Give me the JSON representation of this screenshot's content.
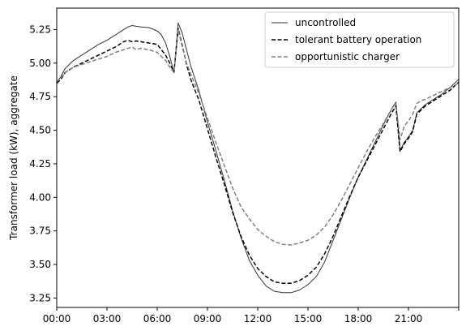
{
  "chart_data": {
    "type": "line",
    "title": "",
    "xlabel": "",
    "ylabel": "Transformer load (kW), aggregate",
    "xlim": [
      0,
      24
    ],
    "ylim": [
      3.18,
      5.41
    ],
    "x_ticks": [
      0,
      3,
      6,
      9,
      12,
      15,
      18,
      21,
      24
    ],
    "x_tick_labels": [
      "00:00",
      "03:00",
      "06:00",
      "09:00",
      "12:00",
      "15:00",
      "18:00",
      "21:00",
      ""
    ],
    "y_ticks": [
      3.25,
      3.5,
      3.75,
      4.0,
      4.25,
      4.5,
      4.75,
      5.0,
      5.25
    ],
    "y_tick_labels": [
      "3.25",
      "3.50",
      "3.75",
      "4.00",
      "4.25",
      "4.50",
      "4.75",
      "5.00",
      "5.25"
    ],
    "grid": false,
    "legend_position": "top-right",
    "series": [
      {
        "name": "uncontrolled",
        "color": "#333333",
        "dash": "solid",
        "x": [
          0,
          0.25,
          0.5,
          0.75,
          1,
          1.5,
          2,
          2.5,
          3,
          3.5,
          4,
          4.25,
          4.5,
          4.75,
          5,
          5.5,
          6,
          6.25,
          6.5,
          6.75,
          7,
          7.25,
          7.5,
          7.75,
          8,
          8.5,
          9,
          9.5,
          10,
          10.5,
          11,
          11.5,
          12,
          12.5,
          13,
          13.5,
          14,
          14.5,
          15,
          15.5,
          16,
          16.5,
          17,
          17.5,
          18,
          18.5,
          19,
          19.5,
          20,
          20.25,
          20.5,
          20.75,
          21,
          21.25,
          21.5,
          21.75,
          22,
          22.5,
          23,
          23.5,
          24
        ],
        "y": [
          4.86,
          4.9,
          4.96,
          4.99,
          5.02,
          5.06,
          5.1,
          5.14,
          5.17,
          5.21,
          5.25,
          5.27,
          5.28,
          5.275,
          5.27,
          5.265,
          5.24,
          5.21,
          5.15,
          5.05,
          4.93,
          5.3,
          5.22,
          5.1,
          4.98,
          4.79,
          4.56,
          4.35,
          4.13,
          3.9,
          3.7,
          3.53,
          3.42,
          3.34,
          3.3,
          3.29,
          3.29,
          3.31,
          3.35,
          3.41,
          3.52,
          3.68,
          3.84,
          4.0,
          4.15,
          4.28,
          4.41,
          4.54,
          4.66,
          4.71,
          4.35,
          4.41,
          4.45,
          4.5,
          4.63,
          4.66,
          4.69,
          4.73,
          4.77,
          4.82,
          4.88
        ]
      },
      {
        "name": "tolerant battery operation",
        "color": "#000000",
        "dash": "dashed",
        "x": [
          0,
          0.25,
          0.5,
          0.75,
          1,
          1.5,
          2,
          2.5,
          3,
          3.5,
          4,
          4.25,
          4.5,
          4.75,
          5,
          5.5,
          6,
          6.25,
          6.5,
          6.75,
          7,
          7.25,
          7.5,
          7.75,
          8,
          8.5,
          9,
          9.5,
          10,
          10.5,
          11,
          11.5,
          12,
          12.5,
          13,
          13.5,
          14,
          14.5,
          15,
          15.5,
          16,
          16.5,
          17,
          17.5,
          18,
          18.5,
          19,
          19.5,
          20,
          20.25,
          20.5,
          20.75,
          21,
          21.25,
          21.5,
          21.75,
          22,
          22.5,
          23,
          23.5,
          24
        ],
        "y": [
          4.85,
          4.88,
          4.93,
          4.95,
          4.97,
          5.0,
          5.03,
          5.06,
          5.09,
          5.12,
          5.16,
          5.17,
          5.16,
          5.165,
          5.16,
          5.15,
          5.14,
          5.1,
          5.06,
          5.0,
          4.93,
          5.26,
          5.13,
          4.99,
          4.88,
          4.72,
          4.51,
          4.3,
          4.1,
          3.89,
          3.71,
          3.57,
          3.47,
          3.41,
          3.37,
          3.36,
          3.36,
          3.38,
          3.42,
          3.48,
          3.58,
          3.71,
          3.86,
          4.01,
          4.15,
          4.27,
          4.39,
          4.51,
          4.63,
          4.68,
          4.34,
          4.4,
          4.44,
          4.49,
          4.62,
          4.65,
          4.68,
          4.72,
          4.76,
          4.8,
          4.86
        ]
      },
      {
        "name": "opportunistic charger",
        "color": "#808080",
        "dash": "dashed",
        "x": [
          0,
          0.25,
          0.5,
          0.75,
          1,
          1.5,
          2,
          2.5,
          3,
          3.5,
          4,
          4.25,
          4.5,
          4.75,
          5,
          5.5,
          6,
          6.25,
          6.5,
          6.75,
          7,
          7.25,
          7.5,
          7.75,
          8,
          8.5,
          9,
          9.5,
          10,
          10.5,
          11,
          11.5,
          12,
          12.5,
          13,
          13.5,
          14,
          14.5,
          15,
          15.5,
          16,
          16.5,
          17,
          17.5,
          18,
          18.5,
          19,
          19.5,
          20,
          20.25,
          20.5,
          20.75,
          21,
          21.25,
          21.5,
          21.75,
          22,
          22.5,
          23,
          23.5,
          24
        ],
        "y": [
          4.86,
          4.89,
          4.93,
          4.95,
          4.97,
          4.99,
          5.01,
          5.03,
          5.05,
          5.08,
          5.1,
          5.11,
          5.12,
          5.1,
          5.11,
          5.1,
          5.08,
          5.05,
          5.02,
          4.97,
          4.93,
          5.25,
          5.12,
          5.0,
          4.92,
          4.77,
          4.59,
          4.41,
          4.24,
          4.07,
          3.93,
          3.84,
          3.76,
          3.71,
          3.67,
          3.65,
          3.645,
          3.66,
          3.68,
          3.72,
          3.78,
          3.87,
          3.98,
          4.1,
          4.22,
          4.34,
          4.45,
          4.55,
          4.66,
          4.7,
          4.43,
          4.53,
          4.57,
          4.62,
          4.7,
          4.72,
          4.73,
          4.76,
          4.79,
          4.82,
          4.85
        ]
      }
    ]
  }
}
